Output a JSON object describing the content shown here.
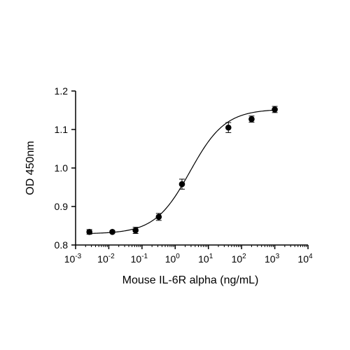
{
  "chart_data": {
    "type": "scatter",
    "xlabel": "Mouse IL-6R alpha (ng/mL)",
    "ylabel": "OD 450nm",
    "x_scale": "log",
    "xlim": [
      0.001,
      10000
    ],
    "ylim": [
      0.8,
      1.2
    ],
    "x_ticks": [
      {
        "value": 0.001,
        "base": "10",
        "exp": "-3"
      },
      {
        "value": 0.01,
        "base": "10",
        "exp": "-2"
      },
      {
        "value": 0.1,
        "base": "10",
        "exp": "-1"
      },
      {
        "value": 1,
        "base": "10",
        "exp": "0"
      },
      {
        "value": 10,
        "base": "10",
        "exp": "1"
      },
      {
        "value": 100,
        "base": "10",
        "exp": "2"
      },
      {
        "value": 1000,
        "base": "10",
        "exp": "3"
      },
      {
        "value": 10000,
        "base": "10",
        "exp": "4"
      }
    ],
    "y_ticks": [
      {
        "value": 0.8,
        "label": "0.8"
      },
      {
        "value": 0.9,
        "label": "0.9"
      },
      {
        "value": 1.0,
        "label": "1.0"
      },
      {
        "value": 1.1,
        "label": "1.1"
      },
      {
        "value": 1.2,
        "label": "1.2"
      }
    ],
    "points": [
      {
        "x": 0.0026,
        "y": 0.834,
        "err": 0.006
      },
      {
        "x": 0.0128,
        "y": 0.834,
        "err": 0.003
      },
      {
        "x": 0.064,
        "y": 0.838,
        "err": 0.008
      },
      {
        "x": 0.32,
        "y": 0.873,
        "err": 0.009
      },
      {
        "x": 1.6,
        "y": 0.958,
        "err": 0.013
      },
      {
        "x": 40,
        "y": 1.105,
        "err": 0.013
      },
      {
        "x": 200,
        "y": 1.127,
        "err": 0.008
      },
      {
        "x": 1000,
        "y": 1.152,
        "err": 0.008
      }
    ],
    "fit": {
      "model": "4PL",
      "bottom": 0.829,
      "top": 1.153,
      "ec50": 2.8,
      "hill": 0.82
    },
    "grid": false,
    "legend": false
  }
}
